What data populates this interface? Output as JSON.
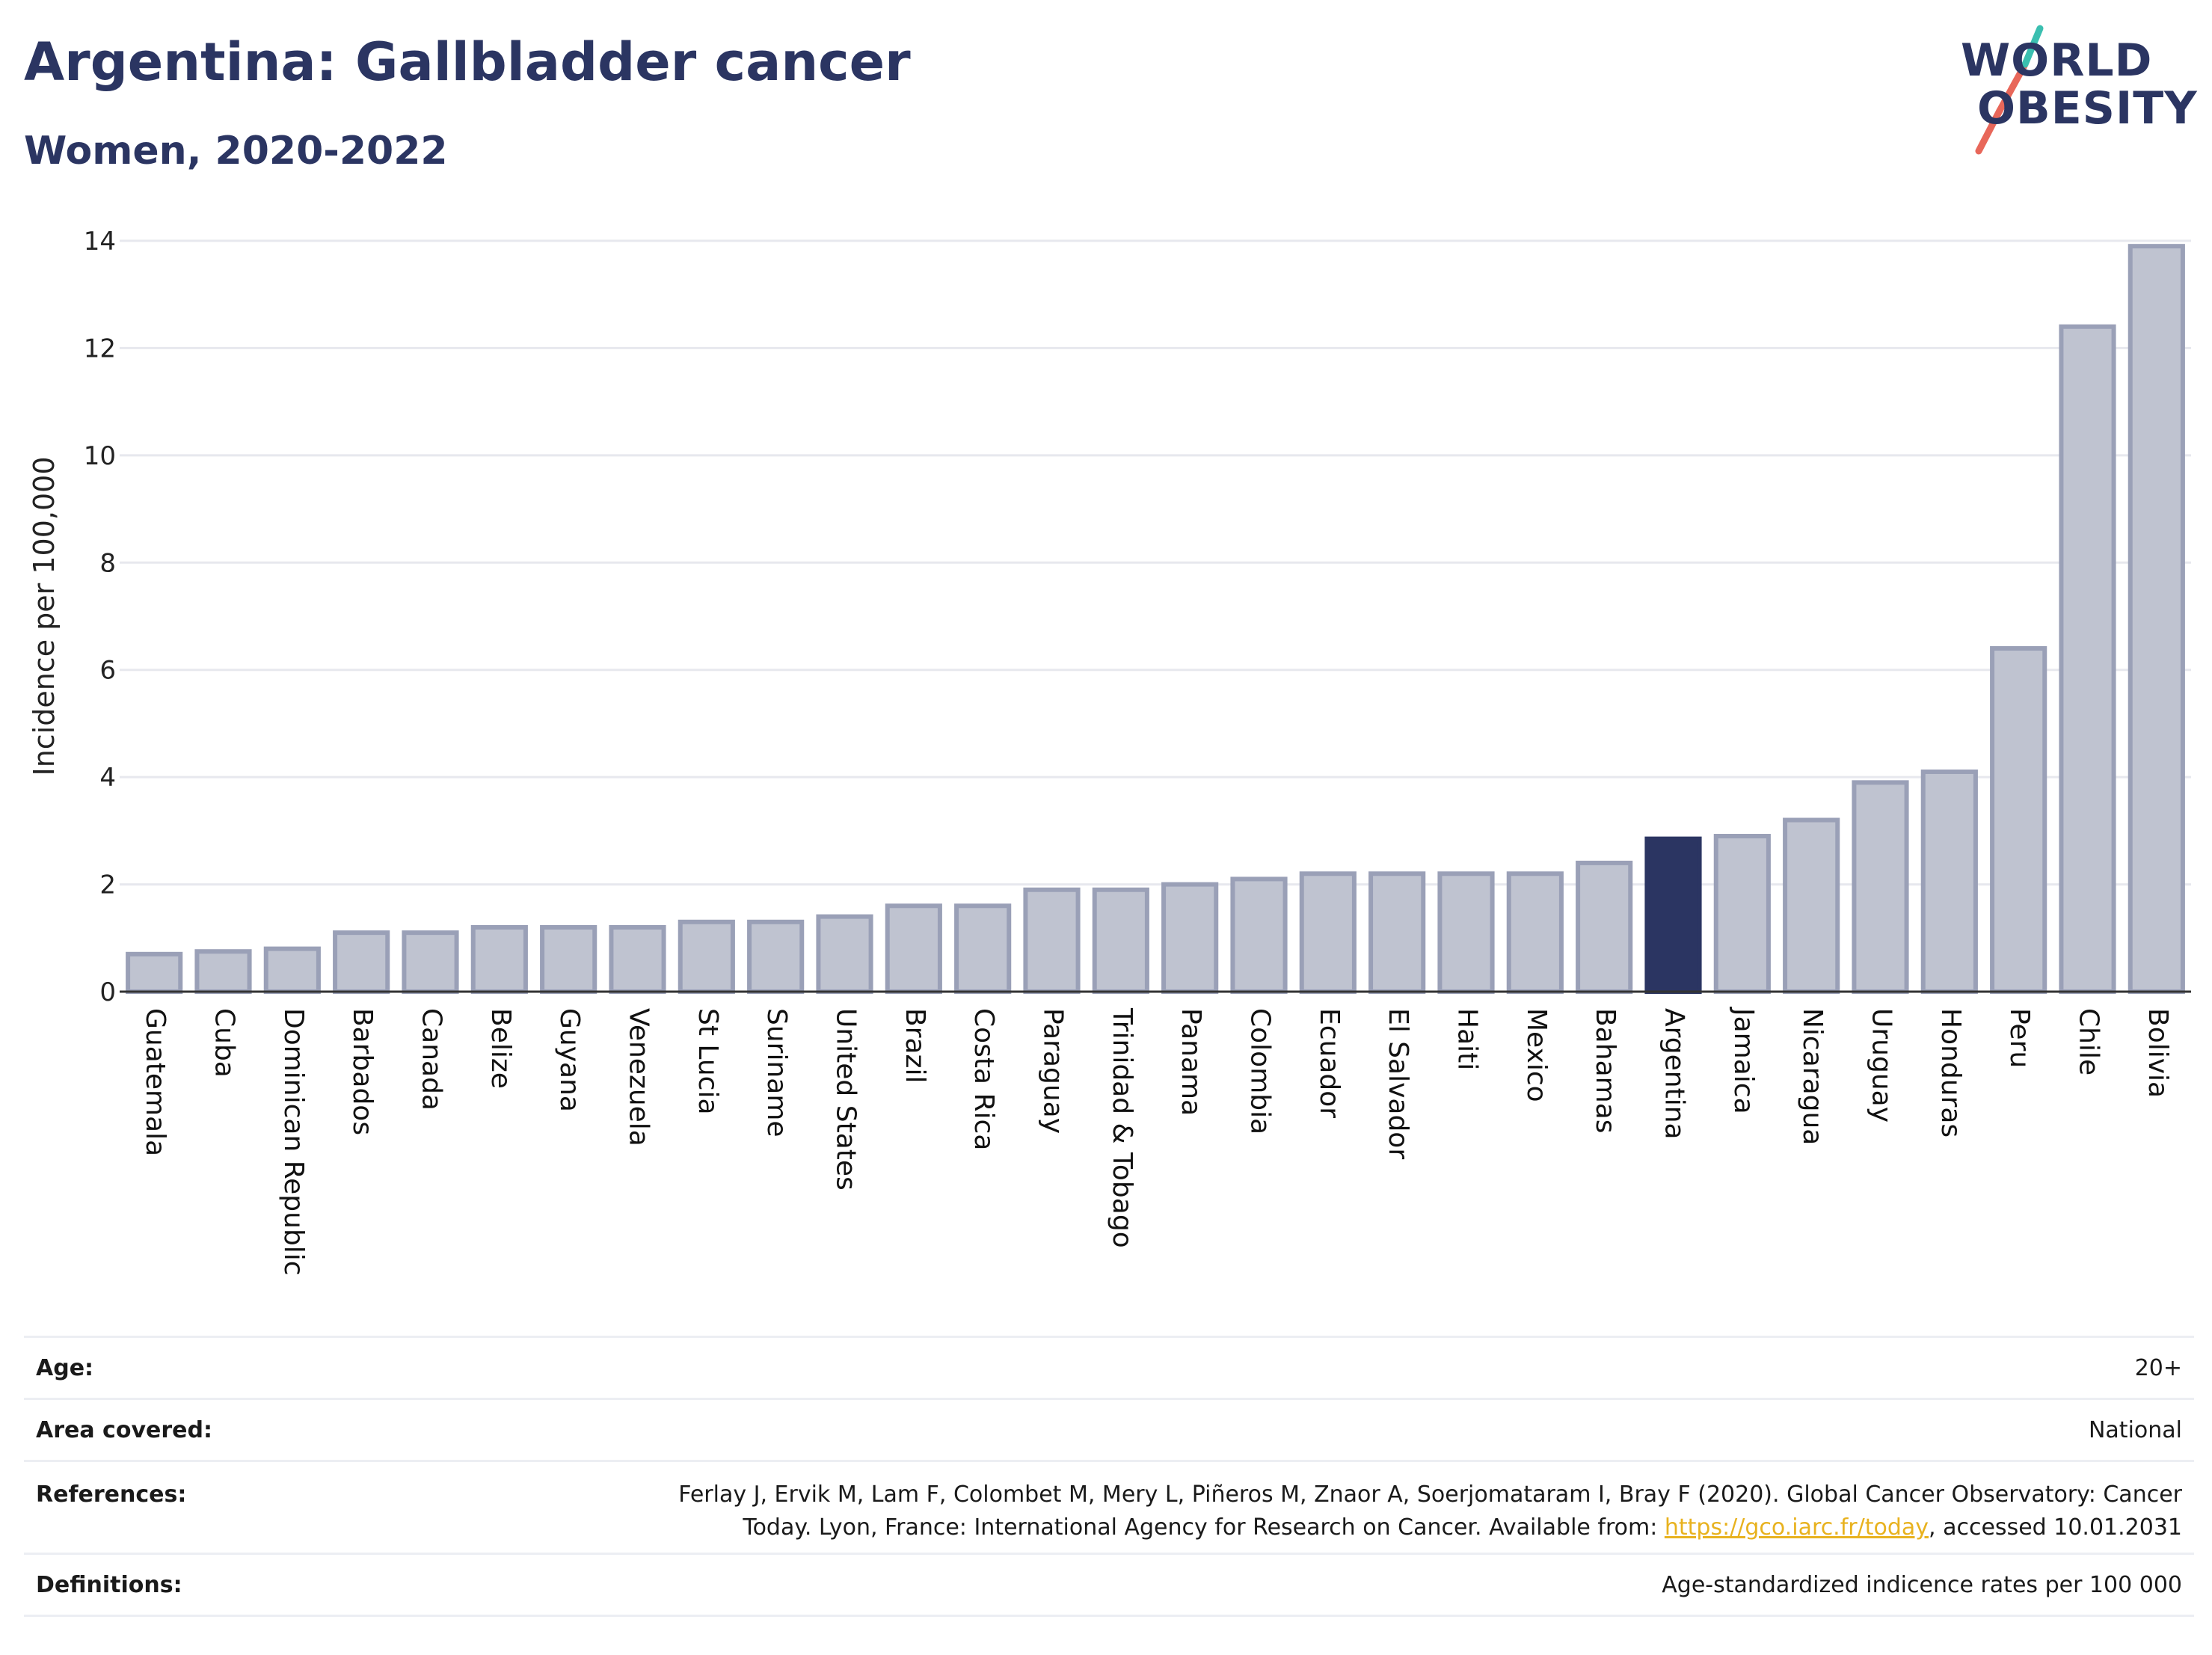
{
  "header": {
    "title": "Argentina: Gallbladder cancer",
    "subtitle": "Women, 2020-2022"
  },
  "logo": {
    "line1": "WORLD",
    "line2": "OBESITY",
    "colors": [
      "#2b3562",
      "#3bbfb0",
      "#e8675a"
    ]
  },
  "colors": {
    "bar": "#bfc3d0",
    "bar_stroke": "#9aa0b7",
    "highlight": "#2b3562",
    "grid": "#e7e8ee",
    "axis": "#333333"
  },
  "chart_data": {
    "type": "bar",
    "categories": [
      "Guatemala",
      "Cuba",
      "Dominican Republic",
      "Barbados",
      "Canada",
      "Belize",
      "Guyana",
      "Venezuela",
      "St Lucia",
      "Suriname",
      "United States",
      "Brazil",
      "Costa Rica",
      "Paraguay",
      "Trinidad & Tobago",
      "Panama",
      "Colombia",
      "Ecuador",
      "El Salvador",
      "Haiti",
      "Mexico",
      "Bahamas",
      "Argentina",
      "Jamaica",
      "Nicaragua",
      "Uruguay",
      "Honduras",
      "Peru",
      "Chile",
      "Bolivia"
    ],
    "values": [
      0.7,
      0.75,
      0.8,
      1.1,
      1.1,
      1.2,
      1.2,
      1.2,
      1.3,
      1.3,
      1.4,
      1.6,
      1.6,
      1.9,
      1.9,
      2.0,
      2.1,
      2.2,
      2.2,
      2.2,
      2.2,
      2.4,
      2.85,
      2.9,
      3.2,
      3.9,
      4.1,
      6.4,
      12.4,
      13.9
    ],
    "highlight": "Argentina",
    "ylabel": "Incidence per 100,000",
    "yticks": [
      0,
      2,
      4,
      6,
      8,
      10,
      12,
      14
    ],
    "ylim": [
      0,
      14
    ],
    "grid": true
  },
  "meta": {
    "age": {
      "label": "Age:",
      "value": "20+"
    },
    "area": {
      "label": "Area covered:",
      "value": "National"
    },
    "references": {
      "label": "References:",
      "line1": "Ferlay J, Ervik M, Lam F, Colombet M, Mery L, Piñeros M, Znaor A, Soerjomataram I, Bray F (2020). Global Cancer Observatory: Cancer",
      "line2_pre": "Today. Lyon, France: International Agency for Research on Cancer. Available from: ",
      "link": "https://gco.iarc.fr/today",
      "line2_post": ", accessed 10.01.2031"
    },
    "definitions": {
      "label": "Definitions:",
      "value": "Age-standardized indicence rates per 100 000"
    }
  }
}
